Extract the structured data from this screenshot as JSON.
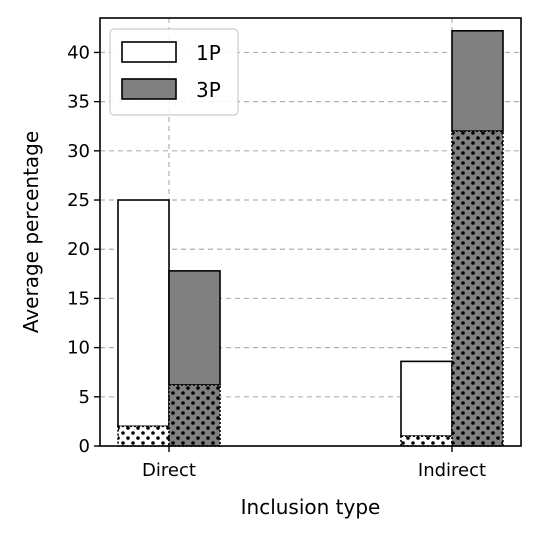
{
  "chart_data": {
    "type": "bar",
    "xlabel": "Inclusion type",
    "ylabel": "Average percentage",
    "categories": [
      "Direct",
      "Indirect"
    ],
    "ylim": [
      0,
      43.5
    ],
    "yticks": [
      0,
      5,
      10,
      15,
      20,
      25,
      30,
      35,
      40
    ],
    "grid": true,
    "legend_position": "top-left",
    "stacked_segments": "each bar has a dotted lower portion and a solid upper portion",
    "series": [
      {
        "name": "1P",
        "color": "#ffffff",
        "values": [
          25.0,
          8.6
        ],
        "dotted_portion": [
          2.0,
          1.0
        ]
      },
      {
        "name": "3P",
        "color": "#808080",
        "values": [
          17.8,
          42.2
        ],
        "dotted_portion": [
          6.2,
          32.0
        ]
      }
    ]
  }
}
